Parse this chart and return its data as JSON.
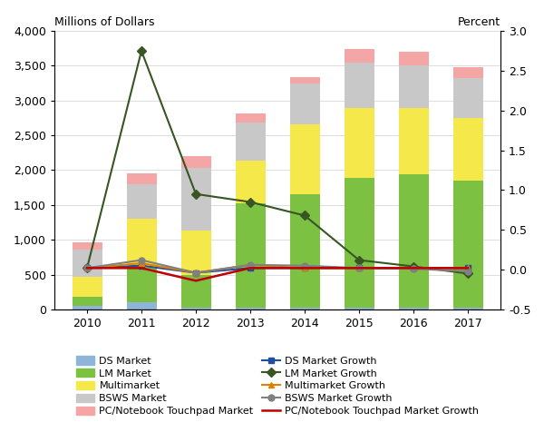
{
  "years": [
    2010,
    2011,
    2012,
    2013,
    2014,
    2015,
    2016,
    2017
  ],
  "bar_data": {
    "DS": [
      50,
      100,
      20,
      20,
      20,
      20,
      20,
      20
    ],
    "LM": [
      130,
      500,
      480,
      1500,
      1640,
      1870,
      1920,
      1830
    ],
    "Multimarket": [
      290,
      700,
      630,
      620,
      1000,
      1000,
      950,
      900
    ],
    "BSWS": [
      390,
      500,
      900,
      550,
      580,
      650,
      620,
      570
    ],
    "PC_Touchpad": [
      100,
      150,
      170,
      120,
      100,
      200,
      190,
      155
    ]
  },
  "line_data": {
    "DS_Growth": [
      0.02,
      0.05,
      -0.04,
      0.02,
      0.02,
      0.02,
      0.02,
      0.02
    ],
    "LM_Growth": [
      0.02,
      2.75,
      0.95,
      0.85,
      0.68,
      0.12,
      0.04,
      -0.05
    ],
    "Multimarket_Growth": [
      0.02,
      0.08,
      -0.04,
      0.06,
      0.02,
      0.02,
      0.02,
      0.02
    ],
    "BSWS_Growth": [
      0.02,
      0.12,
      -0.04,
      0.06,
      0.05,
      0.02,
      0.01,
      -0.02
    ],
    "PC_Touchpad_Growth": [
      0.02,
      0.02,
      -0.14,
      0.02,
      0.02,
      0.02,
      0.02,
      0.02
    ]
  },
  "bar_colors": {
    "DS": "#8eb4d8",
    "LM": "#7dc142",
    "Multimarket": "#f5e84a",
    "BSWS": "#c8c8c8",
    "PC_Touchpad": "#f4a6a6"
  },
  "line_styles": {
    "DS_Growth": {
      "color": "#1f4e9c",
      "marker": "s",
      "lw": 1.5,
      "ms": 5
    },
    "LM_Growth": {
      "color": "#375623",
      "marker": "D",
      "lw": 1.5,
      "ms": 5
    },
    "Multimarket_Growth": {
      "color": "#e08000",
      "marker": "^",
      "lw": 1.5,
      "ms": 5
    },
    "BSWS_Growth": {
      "color": "#808080",
      "marker": "o",
      "lw": 1.5,
      "ms": 5
    },
    "PC_Touchpad_Growth": {
      "color": "#c00000",
      "marker": "none",
      "lw": 1.8,
      "ms": 0
    }
  },
  "ylim_left": [
    0,
    4000
  ],
  "ylim_right": [
    -0.5,
    3.0
  ],
  "yticks_left": [
    0,
    500,
    1000,
    1500,
    2000,
    2500,
    3000,
    3500,
    4000
  ],
  "ytick_labels_left": [
    "0",
    "500",
    "1,000",
    "1,500",
    "2,000",
    "2,500",
    "3,000",
    "3,500",
    "4,000"
  ],
  "yticks_right": [
    -0.5,
    0.0,
    0.5,
    1.0,
    1.5,
    2.0,
    2.5,
    3.0
  ],
  "ytick_labels_right": [
    "-0.5",
    "0.0",
    "0.5",
    "1.0",
    "1.5",
    "2.0",
    "2.5",
    "3.0"
  ],
  "top_left_label": "Millions of Dollars",
  "top_right_label": "Percent",
  "bar_width": 0.55,
  "background_color": "#ffffff",
  "legend_left": [
    "DS Market",
    "Multimarket",
    "PC/Notebook Touchpad Market",
    "LM Market Growth",
    "BSWS Market Growth"
  ],
  "legend_right": [
    "LM Market",
    "BSWS Market",
    "DS Market Growth",
    "Multimarket Growth",
    "PC/Notebook Touchpad Market Growth"
  ]
}
